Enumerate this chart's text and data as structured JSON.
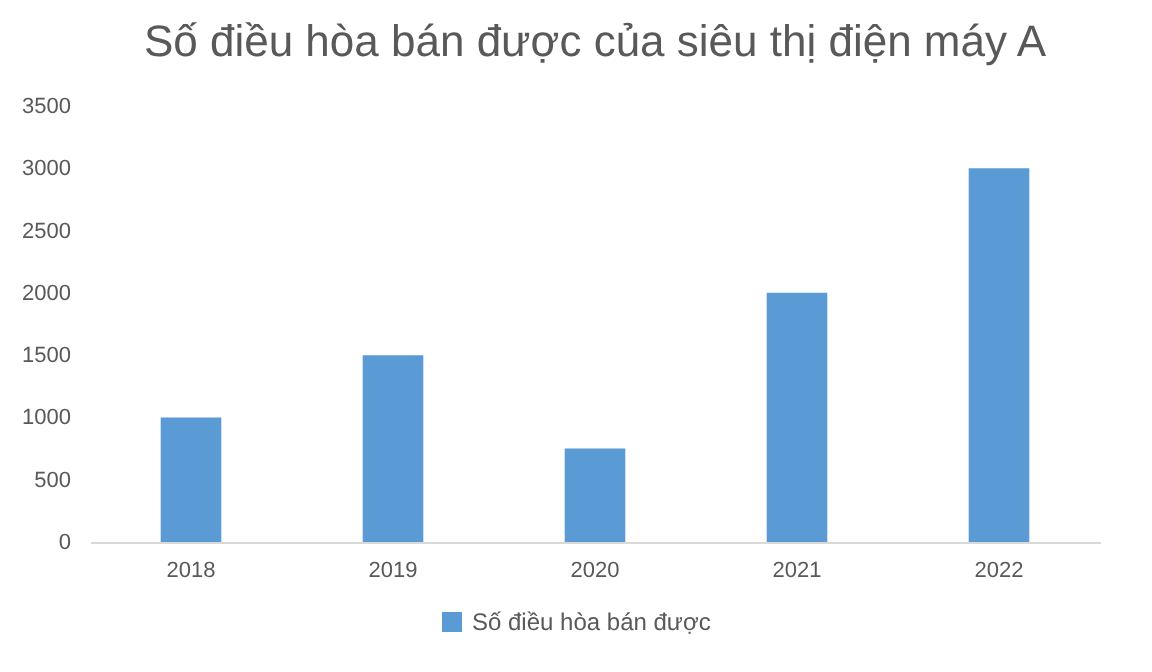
{
  "chart_data": {
    "type": "bar",
    "title": "Số điều hòa bán được của siêu thị điện máy A",
    "categories": [
      "2018",
      "2019",
      "2020",
      "2021",
      "2022"
    ],
    "series": [
      {
        "name": "Số điều hòa bán được",
        "color": "#5b9bd5",
        "values": [
          1000,
          1500,
          750,
          2000,
          3000
        ]
      }
    ],
    "ylim": [
      0,
      3500
    ],
    "yticks": [
      0,
      500,
      1000,
      1500,
      2000,
      2500,
      3000,
      3500
    ],
    "grid": false,
    "legend": "bottom"
  }
}
